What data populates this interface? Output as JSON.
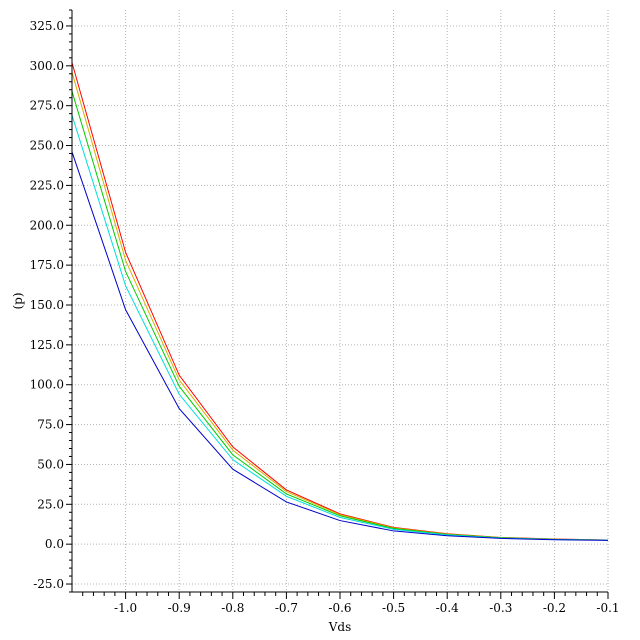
{
  "chart_data": {
    "type": "line",
    "title": "",
    "xlabel": "Vds",
    "ylabel": "(p)",
    "xlim": [
      -1.1,
      -0.1
    ],
    "ylim": [
      -30,
      335
    ],
    "xticks": [
      -1.0,
      -0.9,
      -0.8,
      -0.7,
      -0.6,
      -0.5,
      -0.4,
      -0.3,
      -0.2,
      -0.1
    ],
    "xtick_labels": [
      "-1.0",
      "-0.9",
      "-0.8",
      "-0.7",
      "-0.6",
      "-0.5",
      "-0.4",
      "-0.3",
      "-0.2",
      "-0.1"
    ],
    "yticks": [
      -25,
      0,
      25,
      50,
      75,
      100,
      125,
      150,
      175,
      200,
      225,
      250,
      275,
      300,
      325
    ],
    "ytick_labels": [
      "-25.0",
      "0.0",
      "25.0",
      "50.0",
      "75.0",
      "100.0",
      "125.0",
      "150.0",
      "175.0",
      "200.0",
      "225.0",
      "250.0",
      "275.0",
      "300.0",
      "325.0"
    ],
    "grid": true,
    "legend": "none",
    "x": [
      -1.1,
      -1.0,
      -0.9,
      -0.8,
      -0.7,
      -0.6,
      -0.5,
      -0.4,
      -0.3,
      -0.2,
      -0.1
    ],
    "series": [
      {
        "color": "#ff0000",
        "values": [
          302,
          183,
          106,
          61,
          34,
          19,
          10.5,
          6.5,
          4.2,
          3.2,
          2.6
        ]
      },
      {
        "color": "#d4b000",
        "values": [
          296,
          178,
          103,
          59,
          33,
          18.5,
          10.2,
          6.3,
          4.1,
          3.1,
          2.6
        ]
      },
      {
        "color": "#00cc00",
        "values": [
          284,
          171,
          99,
          56,
          31.5,
          17.8,
          9.8,
          6.1,
          4.0,
          3.0,
          2.5
        ]
      },
      {
        "color": "#00dddd",
        "values": [
          269,
          162,
          94,
          53,
          30,
          16.8,
          9.3,
          5.8,
          3.8,
          2.9,
          2.5
        ]
      },
      {
        "color": "#0000cc",
        "values": [
          246,
          147,
          85,
          47,
          26.5,
          14.8,
          8.3,
          5.3,
          3.6,
          2.8,
          2.4
        ]
      }
    ]
  }
}
